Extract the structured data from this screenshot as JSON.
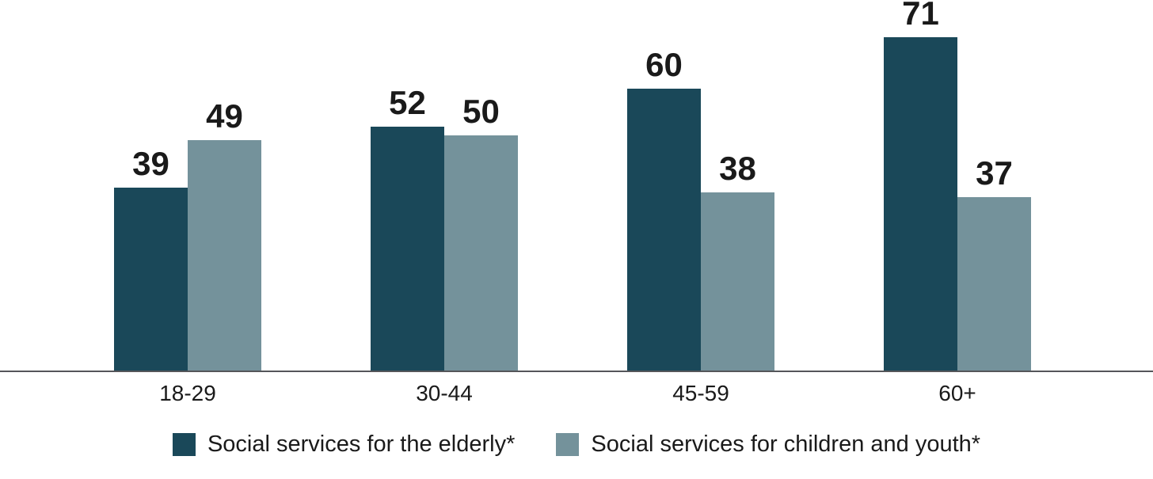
{
  "chart_data": {
    "type": "bar",
    "categories": [
      "18-29",
      "30-44",
      "45-59",
      "60+"
    ],
    "series": [
      {
        "name": "Social services for the elderly*",
        "color": "#1A4859",
        "values": [
          39,
          52,
          60,
          71
        ]
      },
      {
        "name": "Social services for children and youth*",
        "color": "#74929B",
        "values": [
          49,
          50,
          38,
          37
        ]
      }
    ],
    "title": "",
    "xlabel": "",
    "ylabel": "",
    "ylim": [
      0,
      79
    ],
    "grid": false,
    "value_labels": true,
    "legend_position": "bottom"
  },
  "colors": {
    "axis_line": "#55565A",
    "text": "#1A1A1A",
    "background": "#FFFFFF"
  }
}
